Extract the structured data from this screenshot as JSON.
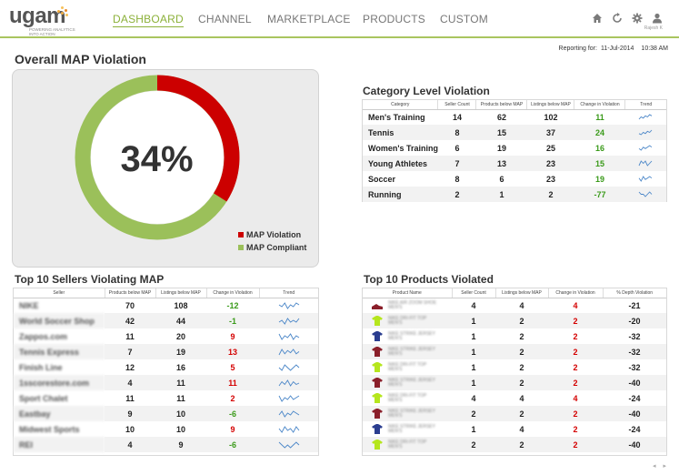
{
  "header": {
    "logo_word": "ugam",
    "logo_tagline": "POWERING ANALYTICS INTO ACTION",
    "nav": [
      {
        "label": "DASHBOARD",
        "active": true
      },
      {
        "label": "CHANNEL",
        "active": false
      },
      {
        "label": "MARKETPLACE",
        "active": false
      },
      {
        "label": "PRODUCTS",
        "active": false
      },
      {
        "label": "CUSTOM",
        "active": false
      }
    ],
    "icons": [
      "home-icon",
      "refresh-icon",
      "gear-icon",
      "user-icon"
    ],
    "user_label": "Rajesh K"
  },
  "report": {
    "label": "Reporting for:",
    "date": "11-Jul-2014",
    "time": "10:38 AM"
  },
  "overall": {
    "title": "Overall MAP Violation",
    "percent_label": "34%",
    "violation_fraction": 0.34,
    "legend": [
      {
        "label": "MAP Violation",
        "color": "#cc0000"
      },
      {
        "label": "MAP Compliant",
        "color": "#9bc05a"
      }
    ]
  },
  "category": {
    "title": "Category Level Violation",
    "headers": [
      "Category",
      "Seller Count",
      "Products below MAP",
      "Listings below MAP",
      "Change in Violation",
      "Trend"
    ],
    "rows": [
      {
        "name": "Men's Training",
        "sellers": "14",
        "products": "62",
        "listings": "102",
        "change": "11",
        "trend": [
          3,
          5,
          4,
          6,
          5,
          7,
          6
        ]
      },
      {
        "name": "Tennis",
        "sellers": "8",
        "products": "15",
        "listings": "37",
        "change": "24",
        "trend": [
          4,
          3,
          5,
          4,
          6,
          5,
          7
        ]
      },
      {
        "name": "Women's Training",
        "sellers": "6",
        "products": "19",
        "listings": "25",
        "change": "16",
        "trend": [
          5,
          4,
          6,
          5,
          6,
          7,
          6
        ]
      },
      {
        "name": "Young Athletes",
        "sellers": "7",
        "products": "13",
        "listings": "23",
        "change": "15",
        "trend": [
          4,
          6,
          5,
          6,
          4,
          5,
          6
        ]
      },
      {
        "name": "Soccer",
        "sellers": "8",
        "products": "6",
        "listings": "23",
        "change": "19",
        "trend": [
          5,
          3,
          6,
          4,
          5,
          6,
          5
        ]
      },
      {
        "name": "Running",
        "sellers": "2",
        "products": "1",
        "listings": "2",
        "change": "-77",
        "trend": [
          6,
          5,
          5,
          4,
          5,
          6,
          5
        ]
      }
    ]
  },
  "sellers": {
    "title": "Top 10 Sellers Violating MAP",
    "headers": [
      "Seller",
      "Products below MAP",
      "Listings below MAP",
      "Change in Violation",
      "Trend"
    ],
    "rows": [
      {
        "name": "NIKE",
        "products": "70",
        "listings": "108",
        "change": "-12",
        "dir": "green",
        "trend": [
          5,
          4,
          6,
          3,
          5,
          4,
          6,
          5
        ]
      },
      {
        "name": "World Soccer Shop",
        "products": "42",
        "listings": "44",
        "change": "-1",
        "dir": "green",
        "trend": [
          4,
          5,
          3,
          6,
          4,
          5,
          4,
          6
        ]
      },
      {
        "name": "Zappos.com",
        "products": "11",
        "listings": "20",
        "change": "9",
        "dir": "red",
        "trend": [
          6,
          3,
          5,
          4,
          6,
          3,
          5,
          4
        ]
      },
      {
        "name": "Tennis Express",
        "products": "7",
        "listings": "19",
        "change": "13",
        "dir": "red",
        "trend": [
          2,
          7,
          3,
          6,
          4,
          7,
          3,
          5
        ]
      },
      {
        "name": "Finish Line",
        "products": "12",
        "listings": "16",
        "change": "5",
        "dir": "red",
        "trend": [
          5,
          4,
          6,
          5,
          4,
          5,
          6,
          5
        ]
      },
      {
        "name": "1sscorestore.com",
        "products": "4",
        "listings": "11",
        "change": "11",
        "dir": "red",
        "trend": [
          3,
          6,
          4,
          7,
          3,
          6,
          4,
          5
        ]
      },
      {
        "name": "Sport Chalet",
        "products": "11",
        "listings": "11",
        "change": "2",
        "dir": "red",
        "trend": [
          6,
          3,
          5,
          4,
          6,
          4,
          5,
          6
        ]
      },
      {
        "name": "Eastbay",
        "products": "9",
        "listings": "10",
        "change": "-6",
        "dir": "green",
        "trend": [
          4,
          6,
          3,
          5,
          4,
          6,
          5,
          4
        ]
      },
      {
        "name": "Midwest Sports",
        "products": "10",
        "listings": "10",
        "change": "9",
        "dir": "red",
        "trend": [
          5,
          3,
          6,
          4,
          5,
          3,
          6,
          4
        ]
      },
      {
        "name": "REI",
        "products": "4",
        "listings": "9",
        "change": "-6",
        "dir": "green",
        "trend": [
          6,
          5,
          4,
          5,
          4,
          5,
          6,
          5
        ]
      }
    ]
  },
  "products": {
    "title": "Top 10 Products Violated",
    "headers": [
      "Product Name",
      "Seller Count",
      "Listings below MAP",
      "Change in Violation",
      "% Depth Violation"
    ],
    "rows": [
      {
        "name": "NIKE AIR ZOOM SHOE",
        "sub": "MEN'S",
        "sellers": "4",
        "listings": "4",
        "change": "4",
        "depth": "-21",
        "thumb": "#8a1f2a",
        "kind": "shoe"
      },
      {
        "name": "NIKE DRI-FIT TOP",
        "sub": "MEN'S",
        "sellers": "1",
        "listings": "2",
        "change": "2",
        "depth": "-20",
        "thumb": "#b5e61d",
        "kind": "shirt"
      },
      {
        "name": "NIKE STRIKE JERSEY",
        "sub": "MEN'S",
        "sellers": "1",
        "listings": "2",
        "change": "2",
        "depth": "-32",
        "thumb": "#2a3d8f",
        "kind": "shirt"
      },
      {
        "name": "NIKE STRIKE JERSEY",
        "sub": "MEN'S",
        "sellers": "1",
        "listings": "2",
        "change": "2",
        "depth": "-32",
        "thumb": "#8a1f2a",
        "kind": "shirt"
      },
      {
        "name": "NIKE DRI-FIT TOP",
        "sub": "MEN'S",
        "sellers": "1",
        "listings": "2",
        "change": "2",
        "depth": "-32",
        "thumb": "#b5e61d",
        "kind": "shirt"
      },
      {
        "name": "NIKE STRIKE JERSEY",
        "sub": "MEN'S",
        "sellers": "1",
        "listings": "2",
        "change": "2",
        "depth": "-40",
        "thumb": "#8a1f2a",
        "kind": "shirt"
      },
      {
        "name": "NIKE DRI-FIT TOP",
        "sub": "MEN'S",
        "sellers": "4",
        "listings": "4",
        "change": "4",
        "depth": "-24",
        "thumb": "#b5e61d",
        "kind": "shirt"
      },
      {
        "name": "NIKE STRIKE JERSEY",
        "sub": "MEN'S",
        "sellers": "2",
        "listings": "2",
        "change": "2",
        "depth": "-40",
        "thumb": "#8a1f2a",
        "kind": "shirt"
      },
      {
        "name": "NIKE STRIKE JERSEY",
        "sub": "MEN'S",
        "sellers": "1",
        "listings": "4",
        "change": "2",
        "depth": "-24",
        "thumb": "#2a3d8f",
        "kind": "shirt"
      },
      {
        "name": "NIKE DRI-FIT TOP",
        "sub": "MEN'S",
        "sellers": "2",
        "listings": "2",
        "change": "2",
        "depth": "-40",
        "thumb": "#b5e61d",
        "kind": "shirt"
      }
    ]
  },
  "pager": {
    "prev": "◂",
    "next": "▸"
  }
}
